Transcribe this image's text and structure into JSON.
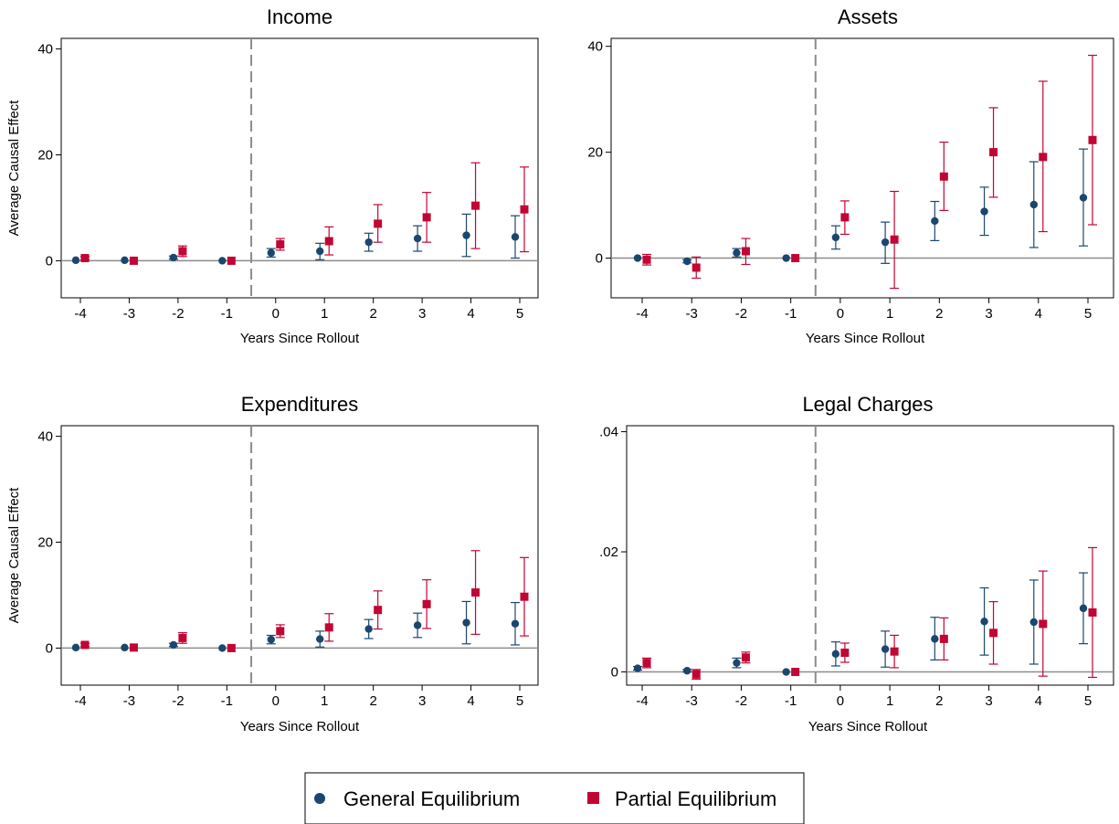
{
  "legend": {
    "ge_label": "General Equilibrium",
    "pe_label": "Partial Equilibrium"
  },
  "colors": {
    "general_equilibrium": "#1a476f",
    "partial_equilibrium": "#c10534",
    "zero_line": "#8c8c8c",
    "rollout_line": "#8c8c8c"
  },
  "chart_data": [
    {
      "type": "scatter",
      "title": "Income",
      "xlabel": "Years Since Rollout",
      "ylabel": "Average Causal Effect",
      "x": [
        -4,
        -3,
        -2,
        -1,
        0,
        1,
        2,
        3,
        4,
        5
      ],
      "x_tick_labels": [
        "-4",
        "-3",
        "-2",
        "-1",
        "0",
        "1",
        "2",
        "3",
        "4",
        "5"
      ],
      "y_ticks": [
        0,
        20,
        40
      ],
      "y_tick_labels": [
        "0",
        "20",
        "40"
      ],
      "ylim": [
        -7,
        42
      ],
      "rollout_line_x": -0.5,
      "series": [
        {
          "name": "General Equilibrium",
          "values": [
            0.1,
            0.1,
            0.6,
            0.0,
            1.5,
            1.8,
            3.5,
            4.2,
            4.8,
            4.5
          ],
          "ci_low": [
            0.0,
            0.0,
            0.3,
            0.0,
            0.7,
            0.2,
            1.8,
            1.8,
            0.8,
            0.5
          ],
          "ci_high": [
            0.2,
            0.2,
            0.9,
            0.0,
            2.3,
            3.3,
            5.2,
            6.6,
            8.8,
            8.5
          ]
        },
        {
          "name": "Partial Equilibrium",
          "values": [
            0.5,
            0.0,
            1.8,
            0.0,
            3.1,
            3.7,
            7.0,
            8.2,
            10.4,
            9.7
          ],
          "ci_low": [
            0.2,
            0.0,
            0.8,
            0.0,
            2.0,
            1.1,
            3.5,
            3.5,
            2.3,
            1.7
          ],
          "ci_high": [
            0.8,
            0.0,
            2.8,
            0.0,
            4.2,
            6.4,
            10.6,
            12.9,
            18.5,
            17.7
          ]
        }
      ]
    },
    {
      "type": "scatter",
      "title": "Assets",
      "xlabel": "Years Since Rollout",
      "ylabel": "",
      "x": [
        -4,
        -3,
        -2,
        -1,
        0,
        1,
        2,
        3,
        4,
        5
      ],
      "x_tick_labels": [
        "-4",
        "-3",
        "-2",
        "-1",
        "0",
        "1",
        "2",
        "3",
        "4",
        "5"
      ],
      "y_ticks": [
        0,
        20,
        40
      ],
      "y_tick_labels": [
        "0",
        "20",
        "40"
      ],
      "ylim": [
        -7.5,
        41.5
      ],
      "rollout_line_x": -0.5,
      "series": [
        {
          "name": "General Equilibrium",
          "values": [
            0.0,
            -0.6,
            1.0,
            0.0,
            3.9,
            3.0,
            7.0,
            8.8,
            10.1,
            11.4
          ],
          "ci_low": [
            0.0,
            -0.9,
            0.2,
            0.0,
            1.7,
            -1.0,
            3.3,
            4.3,
            2.0,
            2.3
          ],
          "ci_high": [
            0.0,
            -0.3,
            1.8,
            0.0,
            6.1,
            6.8,
            10.7,
            13.4,
            18.2,
            20.6
          ]
        },
        {
          "name": "Partial Equilibrium",
          "values": [
            -0.3,
            -1.8,
            1.3,
            0.0,
            7.7,
            3.5,
            15.4,
            20.0,
            19.1,
            22.3
          ],
          "ci_low": [
            -1.3,
            -3.8,
            -1.2,
            0.0,
            4.5,
            -5.7,
            9.0,
            11.5,
            5.0,
            6.3
          ],
          "ci_high": [
            0.7,
            0.2,
            3.7,
            0.0,
            10.8,
            12.6,
            21.9,
            28.4,
            33.4,
            38.3
          ]
        }
      ]
    },
    {
      "type": "scatter",
      "title": "Expenditures",
      "xlabel": "Years Since Rollout",
      "ylabel": "Average Causal Effect",
      "x": [
        -4,
        -3,
        -2,
        -1,
        0,
        1,
        2,
        3,
        4,
        5
      ],
      "x_tick_labels": [
        "-4",
        "-3",
        "-2",
        "-1",
        "0",
        "1",
        "2",
        "3",
        "4",
        "5"
      ],
      "y_ticks": [
        0,
        20,
        40
      ],
      "y_tick_labels": [
        "0",
        "20",
        "40"
      ],
      "ylim": [
        -7,
        42
      ],
      "rollout_line_x": -0.5,
      "series": [
        {
          "name": "General Equilibrium",
          "values": [
            0.1,
            0.1,
            0.6,
            0.0,
            1.6,
            1.7,
            3.6,
            4.3,
            4.8,
            4.6
          ],
          "ci_low": [
            0.0,
            0.0,
            0.3,
            0.0,
            0.8,
            0.2,
            1.8,
            2.0,
            0.8,
            0.6
          ],
          "ci_high": [
            0.2,
            0.2,
            0.9,
            0.0,
            2.4,
            3.2,
            5.4,
            6.6,
            8.8,
            8.6
          ]
        },
        {
          "name": "Partial Equilibrium",
          "values": [
            0.6,
            0.1,
            1.9,
            0.0,
            3.2,
            3.9,
            7.2,
            8.3,
            10.5,
            9.7
          ],
          "ci_low": [
            0.3,
            0.0,
            0.9,
            0.0,
            2.0,
            1.3,
            3.6,
            3.7,
            2.6,
            2.3
          ],
          "ci_high": [
            0.9,
            0.2,
            2.9,
            0.0,
            4.4,
            6.5,
            10.8,
            12.9,
            18.4,
            17.1
          ]
        }
      ]
    },
    {
      "type": "scatter",
      "title": "Legal Charges",
      "xlabel": "Years Since Rollout",
      "ylabel": "",
      "x": [
        -4,
        -3,
        -2,
        -1,
        0,
        1,
        2,
        3,
        4,
        5
      ],
      "x_tick_labels": [
        "-4",
        "-3",
        "-2",
        "-1",
        "0",
        "1",
        "2",
        "3",
        "4",
        "5"
      ],
      "y_ticks": [
        0,
        0.02,
        0.04
      ],
      "y_tick_labels": [
        "0",
        ".02",
        ".04"
      ],
      "ylim": [
        -0.0022,
        0.041
      ],
      "rollout_line_x": -0.5,
      "series": [
        {
          "name": "General Equilibrium",
          "values": [
            0.0006,
            0.0002,
            0.0015,
            0.0,
            0.003,
            0.0038,
            0.0055,
            0.0084,
            0.0083,
            0.0106
          ],
          "ci_low": [
            0.0003,
            0.0,
            0.0007,
            0.0,
            0.001,
            0.0008,
            0.002,
            0.0028,
            0.0013,
            0.0047
          ],
          "ci_high": [
            0.0009,
            0.0004,
            0.0023,
            0.0,
            0.005,
            0.0068,
            0.0091,
            0.014,
            0.0153,
            0.0165
          ]
        },
        {
          "name": "Partial Equilibrium",
          "values": [
            0.0015,
            -0.0004,
            0.0024,
            0.0,
            0.0032,
            0.0034,
            0.0055,
            0.0065,
            0.008,
            0.0099
          ],
          "ci_low": [
            0.0007,
            -0.0012,
            0.0015,
            0.0,
            0.0016,
            0.0007,
            0.002,
            0.0013,
            -0.0007,
            -0.0009
          ],
          "ci_high": [
            0.0023,
            0.0004,
            0.0033,
            0.0,
            0.0048,
            0.0061,
            0.009,
            0.0117,
            0.0168,
            0.0207
          ]
        }
      ]
    }
  ]
}
